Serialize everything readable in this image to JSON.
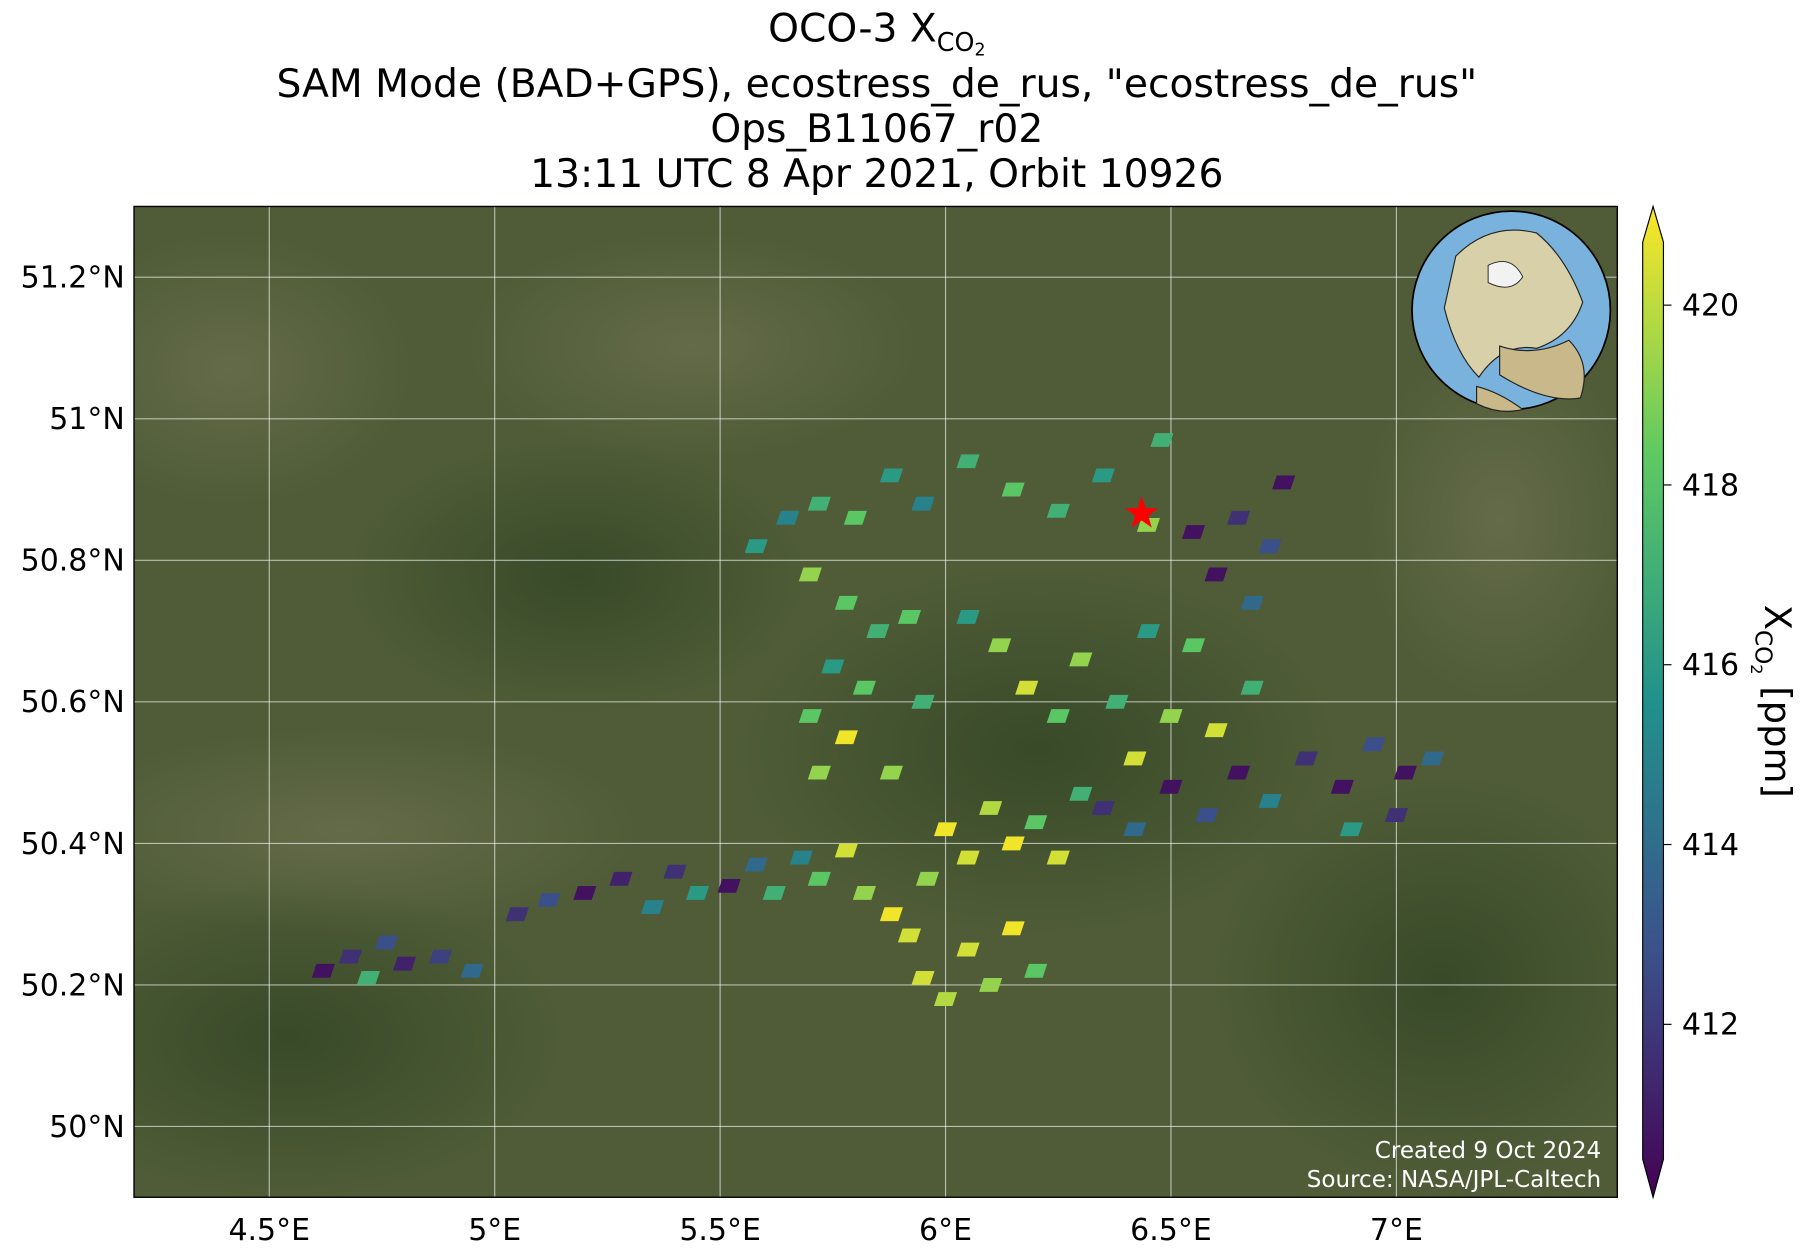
{
  "chart_data": {
    "type": "map",
    "title": {
      "prefix": "OCO-3 X",
      "sub": "CO",
      "subsub": "2"
    },
    "subtitles": [
      "SAM Mode (BAD+GPS), ecostress_de_rus, \"ecostress_de_rus\"",
      "Ops_B11067_r02",
      "13:11 UTC 8 Apr 2021, Orbit 10926"
    ],
    "xlim": [
      4.2,
      7.49
    ],
    "ylim": [
      49.9,
      51.3
    ],
    "xticks": [
      {
        "value": 4.5,
        "label": "4.5°E"
      },
      {
        "value": 5,
        "label": "5°E"
      },
      {
        "value": 5.5,
        "label": "5.5°E"
      },
      {
        "value": 6,
        "label": "6°E"
      },
      {
        "value": 6.5,
        "label": "6.5°E"
      },
      {
        "value": 7,
        "label": "7°E"
      }
    ],
    "yticks": [
      {
        "value": 50,
        "label": "50°N"
      },
      {
        "value": 50.2,
        "label": "50.2°N"
      },
      {
        "value": 50.4,
        "label": "50.4°N"
      },
      {
        "value": 50.6,
        "label": "50.6°N"
      },
      {
        "value": 50.8,
        "label": "50.8°N"
      },
      {
        "value": 51,
        "label": "51°N"
      },
      {
        "value": 51.2,
        "label": "51.2°N"
      }
    ],
    "grid": true,
    "colormap": "viridis",
    "clim": [
      410.5,
      420.7
    ],
    "colorbar_ticks": [
      412,
      414,
      416,
      418,
      420
    ],
    "colorbar_label": {
      "prefix": "X",
      "sub": "CO",
      "subsub": "2",
      "unit": " [ppm]"
    },
    "target": {
      "lon": 6.435,
      "lat": 50.866,
      "color": "#ff0000"
    },
    "soundings": {
      "lon": [
        4.62,
        4.68,
        4.72,
        4.76,
        4.8,
        4.88,
        4.95,
        5.05,
        5.12,
        5.2,
        5.28,
        5.35,
        5.4,
        5.45,
        5.52,
        5.58,
        5.62,
        5.68,
        5.72,
        5.78,
        5.82,
        5.88,
        5.92,
        5.96,
        6.0,
        6.05,
        6.1,
        6.15,
        6.2,
        6.25,
        6.3,
        6.05,
        6.1,
        6.15,
        6.2,
        6.0,
        5.95,
        5.72,
        5.78,
        5.82,
        5.85,
        5.75,
        5.7,
        5.88,
        5.95,
        5.92,
        6.05,
        6.12,
        6.18,
        6.25,
        6.3,
        6.38,
        6.42,
        6.45,
        6.5,
        6.55,
        6.6,
        6.68,
        6.35,
        6.42,
        6.5,
        6.58,
        6.65,
        6.72,
        6.8,
        6.88,
        6.95,
        7.02,
        7.08,
        7.0,
        6.9,
        5.58,
        5.65,
        5.72,
        5.8,
        5.88,
        5.95,
        6.05,
        6.15,
        6.25,
        6.35,
        6.45,
        6.55,
        6.65,
        6.72,
        6.75,
        6.6,
        6.68,
        6.48,
        5.7,
        5.78
      ],
      "lat": [
        50.22,
        50.24,
        50.21,
        50.26,
        50.23,
        50.24,
        50.22,
        50.3,
        50.32,
        50.33,
        50.35,
        50.31,
        50.36,
        50.33,
        50.34,
        50.37,
        50.33,
        50.38,
        50.35,
        50.39,
        50.33,
        50.3,
        50.27,
        50.35,
        50.42,
        50.38,
        50.45,
        50.4,
        50.43,
        50.38,
        50.47,
        50.25,
        50.2,
        50.28,
        50.22,
        50.18,
        50.21,
        50.5,
        50.55,
        50.62,
        50.7,
        50.65,
        50.58,
        50.5,
        50.6,
        50.72,
        50.72,
        50.68,
        50.62,
        50.58,
        50.66,
        50.6,
        50.52,
        50.7,
        50.58,
        50.68,
        50.56,
        50.62,
        50.45,
        50.42,
        50.48,
        50.44,
        50.5,
        50.46,
        50.52,
        50.48,
        50.54,
        50.5,
        50.52,
        50.44,
        50.42,
        50.82,
        50.86,
        50.88,
        50.86,
        50.92,
        50.88,
        50.94,
        50.9,
        50.87,
        50.92,
        50.85,
        50.84,
        50.86,
        50.82,
        50.91,
        50.78,
        50.74,
        50.97,
        50.78,
        50.74
      ],
      "xco2": [
        411,
        412,
        417,
        413,
        411.5,
        412.5,
        414,
        412,
        413,
        411,
        411.5,
        415,
        412,
        416,
        411,
        414,
        417,
        415,
        418,
        420,
        419,
        420.5,
        420,
        419,
        420.5,
        420,
        419.5,
        420.5,
        418,
        420,
        417,
        420,
        419,
        420.5,
        418,
        419.5,
        420,
        419,
        420.5,
        418,
        417,
        416,
        418,
        419,
        417,
        418,
        416,
        419,
        420,
        418,
        419,
        417,
        420,
        416,
        419,
        418,
        420,
        417,
        412,
        414,
        411,
        413,
        411,
        415,
        412,
        411,
        413,
        411,
        414,
        412,
        416,
        416,
        415,
        417,
        418,
        416,
        415,
        417,
        418,
        417,
        416,
        419,
        411,
        412,
        413,
        411,
        411,
        414,
        417,
        419,
        418
      ]
    },
    "credits": [
      "Created 9 Oct 2024",
      "Source: NASA/JPL-Caltech"
    ]
  }
}
